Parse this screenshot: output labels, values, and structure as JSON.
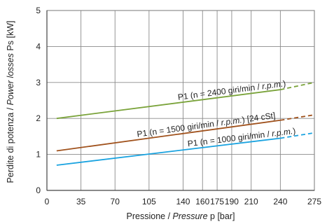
{
  "chart_data": {
    "type": "line",
    "xlabel": {
      "main": "Pressione / ",
      "italic": "Pressure",
      "tail": " p [bar]"
    },
    "ylabel": {
      "main": "Perdite di potenza / ",
      "italic": "Power losses",
      "tail": " Ps [kW]"
    },
    "xlim": [
      0,
      275
    ],
    "ylim": [
      0,
      5
    ],
    "x_ticks": [
      0,
      35,
      70,
      105,
      140,
      160,
      175,
      190,
      210,
      240,
      275
    ],
    "y_ticks": [
      0,
      1,
      2,
      3,
      4,
      5
    ],
    "grid": true,
    "series": [
      {
        "name": {
          "main": "P1 (n = 2400 giri/min / ",
          "italic": "r.p.m.",
          "tail": ")"
        },
        "color": "#7aa33a",
        "solid": {
          "x": [
            10,
            240
          ],
          "y": [
            2.0,
            2.8
          ]
        },
        "dashed": {
          "x": [
            240,
            275
          ],
          "y": [
            2.8,
            3.0
          ]
        }
      },
      {
        "name": {
          "main": "P1 (n = 1500 giri/min / ",
          "italic": "r.p.m.",
          "tail": ") [24 cSt]"
        },
        "color": "#a0521d",
        "solid": {
          "x": [
            10,
            240
          ],
          "y": [
            1.1,
            1.95
          ]
        },
        "dashed": {
          "x": [
            240,
            275
          ],
          "y": [
            1.95,
            2.1
          ]
        }
      },
      {
        "name": {
          "main": "P1 (n = 1000 giri/min / ",
          "italic": "r.p.m.",
          "tail": ")"
        },
        "color": "#1aa3e0",
        "solid": {
          "x": [
            10,
            240
          ],
          "y": [
            0.7,
            1.45
          ]
        },
        "dashed": {
          "x": [
            240,
            275
          ],
          "y": [
            1.45,
            1.6
          ]
        }
      }
    ]
  }
}
